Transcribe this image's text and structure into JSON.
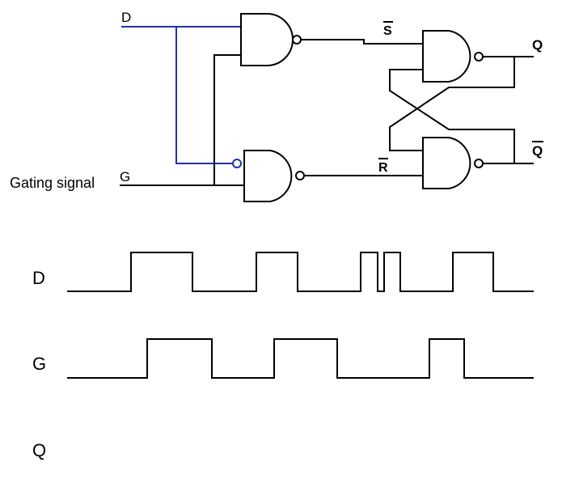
{
  "circuit": {
    "input_d_label": "D",
    "input_g_label": "G",
    "gating_signal_label": "Gating signal",
    "s_bar_label": "S",
    "r_bar_label": "R",
    "output_q_label": "Q",
    "output_q_bar_label": "Q",
    "d_wire_color": "#1f2fb0",
    "wire_color": "#000000"
  },
  "timing": {
    "d_label": "D",
    "g_label": "G",
    "q_label": "Q"
  }
}
